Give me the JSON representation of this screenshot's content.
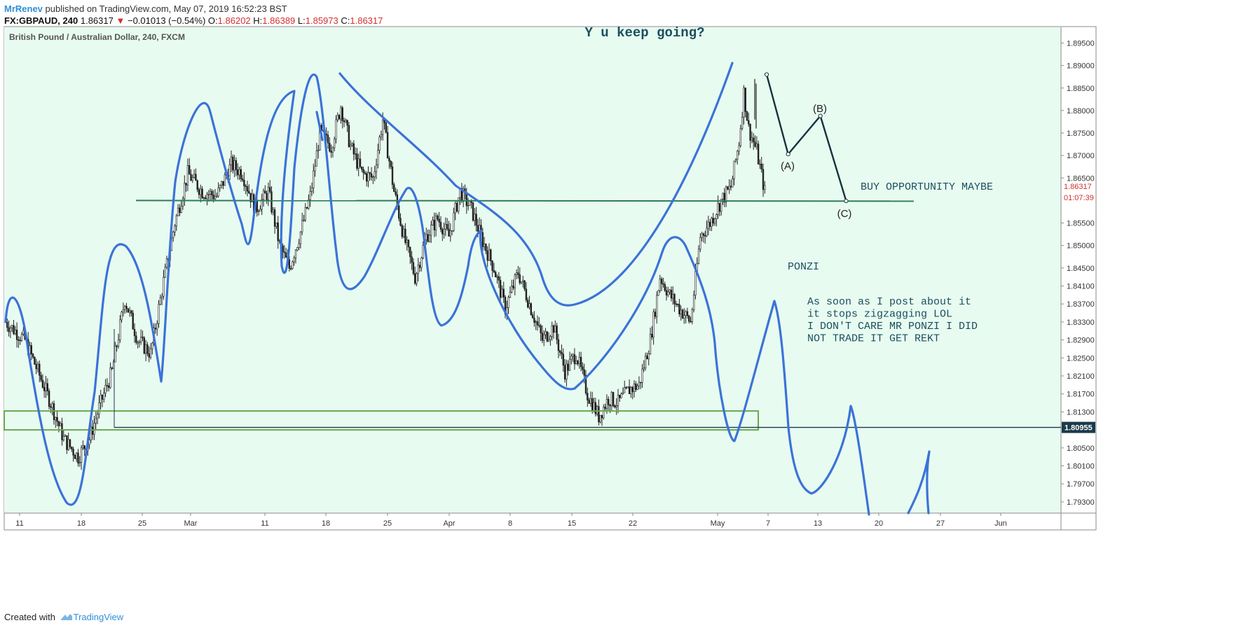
{
  "header": {
    "author": "MrRenev",
    "published_text": "published on TradingView.com, May 07, 2019 16:52:23 BST",
    "symbol": "FX:GBPAUD, 240",
    "last": "1.86317",
    "change": "−0.01013 (−0.54%)",
    "open_label": "O:",
    "open": "1.86202",
    "high_label": "H:",
    "high": "1.86389",
    "low_label": "L:",
    "low": "1.85973",
    "close_label": "C:",
    "close": "1.86317"
  },
  "footer": {
    "created_with": "Created with",
    "brand": "TradingView"
  },
  "colors": {
    "pane_bg": "#e8fbf1",
    "candle": "#222222",
    "drawing_blue": "#3b73d8",
    "hline_green": "#2e7d55",
    "zone_green": "#6aa84f",
    "wave_line": "#14333a",
    "text_teal": "#1a4f5e",
    "price_tag_dark": "#1b3a4b",
    "price_tag_red": "#d32f2f"
  },
  "chart_data": {
    "type": "candlestick",
    "legend_title": "British Pound / Australian Dollar, 240, FXCM",
    "annotation_title": "Y u keep going?",
    "annotations": {
      "buy": "BUY OPPORTUNITY MAYBE",
      "ponzi": "PONZI",
      "note": [
        "As soon as I post about it",
        "it stops zigzagging LOL",
        "I DON'T CARE MR PONZI I DID",
        "NOT TRADE IT GET REKT"
      ],
      "wave_labels": [
        "(A)",
        "(B)",
        "(C)"
      ]
    },
    "y_axis": {
      "ticks": [
        "1.89500",
        "1.89000",
        "1.88500",
        "1.88000",
        "1.87500",
        "1.87000",
        "1.86500",
        "1.85500",
        "1.85000",
        "1.84500",
        "1.84100",
        "1.83700",
        "1.83300",
        "1.82900",
        "1.82500",
        "1.82100",
        "1.81700",
        "1.81300",
        "1.80500",
        "1.80100",
        "1.79700",
        "1.79300"
      ],
      "range": [
        1.7905,
        1.8985
      ],
      "current_price": "1.86317",
      "countdown": "01:07:39",
      "level_label": "1.80955"
    },
    "x_axis": {
      "ticks": [
        "11",
        "18",
        "25",
        "Mar",
        "11",
        "18",
        "25",
        "Apr",
        "8",
        "15",
        "22",
        "May",
        "7",
        "13",
        "20",
        "27",
        "Jun"
      ]
    },
    "levels": {
      "support_line": 1.86,
      "horizontal_level": 1.80955,
      "zone_top": 1.8132,
      "zone_bottom": 1.809
    },
    "price_path": [
      [
        0,
        1.833
      ],
      [
        12,
        1.829
      ],
      [
        20,
        1.822
      ],
      [
        28,
        1.815
      ],
      [
        36,
        1.807
      ],
      [
        45,
        1.803
      ],
      [
        52,
        1.807
      ],
      [
        58,
        1.814
      ],
      [
        66,
        1.822
      ],
      [
        74,
        1.838
      ],
      [
        82,
        1.829
      ],
      [
        90,
        1.826
      ],
      [
        98,
        1.842
      ],
      [
        105,
        1.855
      ],
      [
        113,
        1.866
      ],
      [
        122,
        1.862
      ],
      [
        131,
        1.861
      ],
      [
        140,
        1.868
      ],
      [
        147,
        1.866
      ],
      [
        155,
        1.858
      ],
      [
        163,
        1.862
      ],
      [
        170,
        1.85
      ],
      [
        176,
        1.845
      ],
      [
        183,
        1.853
      ],
      [
        189,
        1.861
      ],
      [
        195,
        1.875
      ],
      [
        202,
        1.872
      ],
      [
        208,
        1.881
      ],
      [
        214,
        1.872
      ],
      [
        221,
        1.866
      ],
      [
        228,
        1.865
      ],
      [
        234,
        1.878
      ],
      [
        241,
        1.862
      ],
      [
        247,
        1.852
      ],
      [
        254,
        1.843
      ],
      [
        261,
        1.852
      ],
      [
        268,
        1.856
      ],
      [
        275,
        1.852
      ],
      [
        282,
        1.862
      ],
      [
        289,
        1.858
      ],
      [
        296,
        1.851
      ],
      [
        303,
        1.845
      ],
      [
        310,
        1.836
      ],
      [
        318,
        1.844
      ],
      [
        326,
        1.836
      ],
      [
        333,
        1.829
      ],
      [
        340,
        1.832
      ],
      [
        347,
        1.822
      ],
      [
        354,
        1.826
      ],
      [
        361,
        1.817
      ],
      [
        368,
        1.812
      ],
      [
        374,
        1.816
      ],
      [
        380,
        1.815
      ],
      [
        387,
        1.818
      ],
      [
        393,
        1.819
      ],
      [
        400,
        1.829
      ],
      [
        406,
        1.843
      ],
      [
        412,
        1.839
      ],
      [
        418,
        1.836
      ],
      [
        425,
        1.833
      ],
      [
        431,
        1.852
      ],
      [
        437,
        1.855
      ],
      [
        444,
        1.86
      ],
      [
        450,
        1.863
      ],
      [
        455,
        1.873
      ],
      [
        458,
        1.884
      ],
      [
        461,
        1.876
      ],
      [
        466,
        1.871
      ],
      [
        471,
        1.862
      ]
    ],
    "wave_points": [
      [
        0.9,
        1.888
      ],
      [
        1.1,
        1.8703
      ],
      [
        1.4,
        1.8788
      ],
      [
        1.64,
        1.8599
      ]
    ]
  }
}
